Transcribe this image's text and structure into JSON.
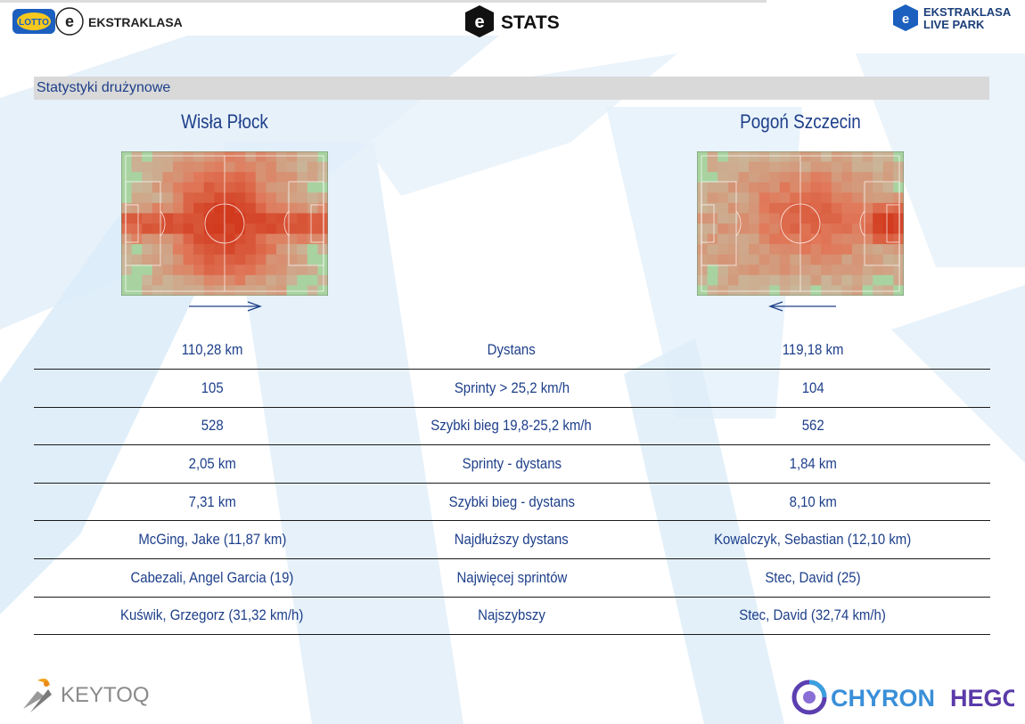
{
  "header": {
    "left_logo_badge": "LOTTO",
    "left_logo_text": "EKSTRAKLASA",
    "center_logo_text": "STATS",
    "right_logo_line1": "EKSTRAKLASA",
    "right_logo_line2": "LIVE PARK"
  },
  "section_title": "Statystyki drużynowe",
  "teams": {
    "home": {
      "name": "Wisła Płock",
      "direction": "right"
    },
    "away": {
      "name": "Pogoń Szczecin",
      "direction": "left"
    }
  },
  "stats": [
    {
      "home": "110,28 km",
      "label": "Dystans",
      "away": "119,18 km"
    },
    {
      "home": "105",
      "label": "Sprinty > 25,2 km/h",
      "away": "104"
    },
    {
      "home": "528",
      "label": "Szybki bieg 19,8-25,2 km/h",
      "away": "562"
    },
    {
      "home": "2,05 km",
      "label": "Sprinty - dystans",
      "away": "1,84 km"
    },
    {
      "home": "7,31 km",
      "label": "Szybki bieg - dystans",
      "away": "8,10 km"
    },
    {
      "home": "McGing, Jake (11,87 km)",
      "label": "Najdłuższy dystans",
      "away": "Kowalczyk, Sebastian (12,10 km)"
    },
    {
      "home": "Cabezali, Angel Garcia (19)",
      "label": "Najwięcej sprintów",
      "away": "Stec, David (25)"
    },
    {
      "home": "Kuświk, Grzegorz (31,32 km/h)",
      "label": "Najszybszy",
      "away": "Stec, David (32,74 km/h)"
    }
  ],
  "footer": {
    "left_brand": "KEYTOQ",
    "right_brand_part1": "CHYRON",
    "right_brand_part2": "HEGO"
  },
  "colors": {
    "text": "#1d3f8a",
    "heat_high": "#d23a1e",
    "heat_mid": "#e0795a",
    "heat_low": "#c9b79a",
    "pitch": "#a8d3a0"
  }
}
